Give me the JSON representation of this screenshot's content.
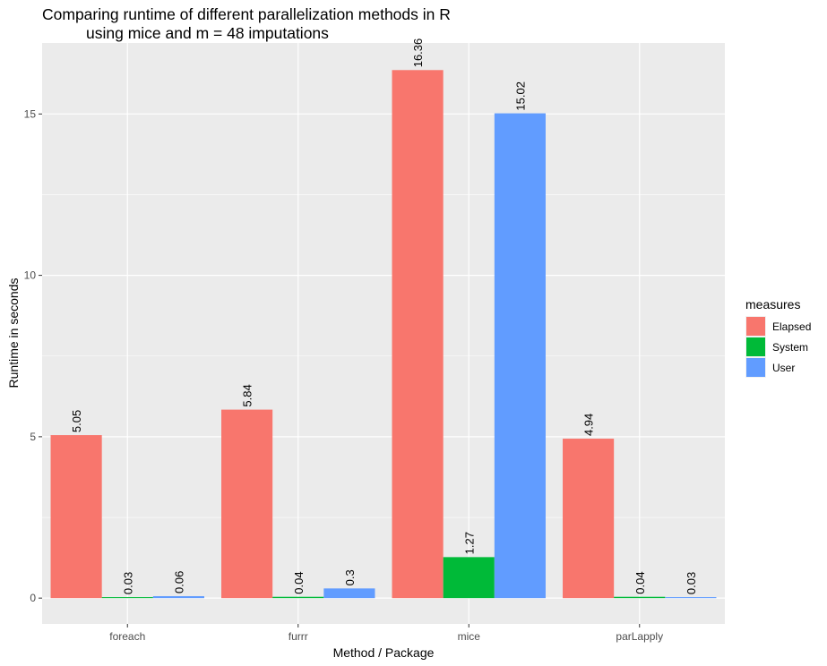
{
  "chart_data": {
    "type": "bar",
    "title_line1": "Comparing runtime of different parallelization methods in R",
    "title_line2": "using mice and m = 48 imputations",
    "xlabel": "Method / Package",
    "ylabel": "Runtime in seconds",
    "categories": [
      "foreach",
      "furrr",
      "mice",
      "parLapply"
    ],
    "series": [
      {
        "name": "Elapsed",
        "color": "#F8766D",
        "values": [
          5.05,
          5.84,
          16.36,
          4.94
        ],
        "labels": [
          "5.05",
          "5.84",
          "16.36",
          "4.94"
        ]
      },
      {
        "name": "System",
        "color": "#00BA38",
        "values": [
          0.03,
          0.04,
          1.27,
          0.04
        ],
        "labels": [
          "0.03",
          "0.04",
          "1.27",
          "0.04"
        ]
      },
      {
        "name": "User",
        "color": "#619CFF",
        "values": [
          0.06,
          0.3,
          15.02,
          0.03
        ],
        "labels": [
          "0.06",
          "0.3",
          "15.02",
          "0.03"
        ]
      }
    ],
    "ylim": [
      -0.8,
      17.2
    ],
    "yticks": [
      0,
      5,
      10,
      15
    ],
    "legend_title": "measures",
    "legend_position": "right",
    "grid": true,
    "panel_background": "#EBEBEB",
    "grid_color": "#FFFFFF"
  }
}
